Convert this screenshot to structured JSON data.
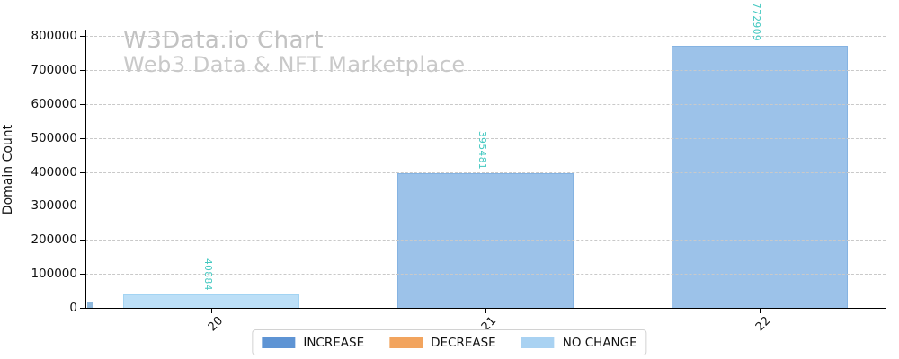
{
  "watermark": {
    "title": "W3Data.io Chart",
    "subtitle": "Web3 Data & NFT Marketplace"
  },
  "y_axis": {
    "title": "Domain Count",
    "tick_labels": [
      "0",
      "100000",
      "200000",
      "300000",
      "400000",
      "500000",
      "600000",
      "700000",
      "800000"
    ]
  },
  "x_axis": {
    "tick_labels": [
      "20",
      "21",
      "22"
    ]
  },
  "legend": {
    "items": [
      {
        "label": "INCREASE",
        "color": "#5E94D4"
      },
      {
        "label": "DECREASE",
        "color": "#F2A45E"
      },
      {
        "label": "NO CHANGE",
        "color": "#A9D2F2"
      }
    ]
  },
  "bar_value_labels": [
    "40884",
    "395481",
    "772909"
  ],
  "colors": {
    "increase_bar_fill": "#9CC2E9",
    "increase_bar_edge": "#85B3E2",
    "no_change_bar_fill": "#BCDFF7",
    "no_change_bar_edge": "#A3D4F3",
    "value_label": "#42C8C0",
    "gridline": "#c9c9c9",
    "watermark_title": "#c2c2c2",
    "watermark_subtitle": "#c9c9c9",
    "axis": "#000000",
    "origin_artifact": "#8FB8DC"
  },
  "chart_data": {
    "type": "bar",
    "title": "W3Data.io Chart",
    "subtitle": "Web3 Data & NFT Marketplace",
    "categories": [
      "20",
      "21",
      "22"
    ],
    "values": [
      40884,
      395481,
      772909
    ],
    "bar_status": [
      "NO CHANGE",
      "INCREASE",
      "INCREASE"
    ],
    "series": [
      {
        "name": "INCREASE",
        "values": [
          0,
          395481,
          772909
        ]
      },
      {
        "name": "DECREASE",
        "values": [
          0,
          0,
          0
        ]
      },
      {
        "name": "NO CHANGE",
        "values": [
          40884,
          0,
          0
        ]
      }
    ],
    "xlabel": "",
    "ylabel": "Domain Count",
    "ylim": [
      0,
      811554
    ],
    "yticks": [
      0,
      100000,
      200000,
      300000,
      400000,
      500000,
      600000,
      700000,
      800000
    ],
    "grid": "horizontal dashed",
    "legend_position": "bottom center",
    "data_label_rotation": "vertical top-to-bottom",
    "data_label_color": "#42C8C0"
  }
}
